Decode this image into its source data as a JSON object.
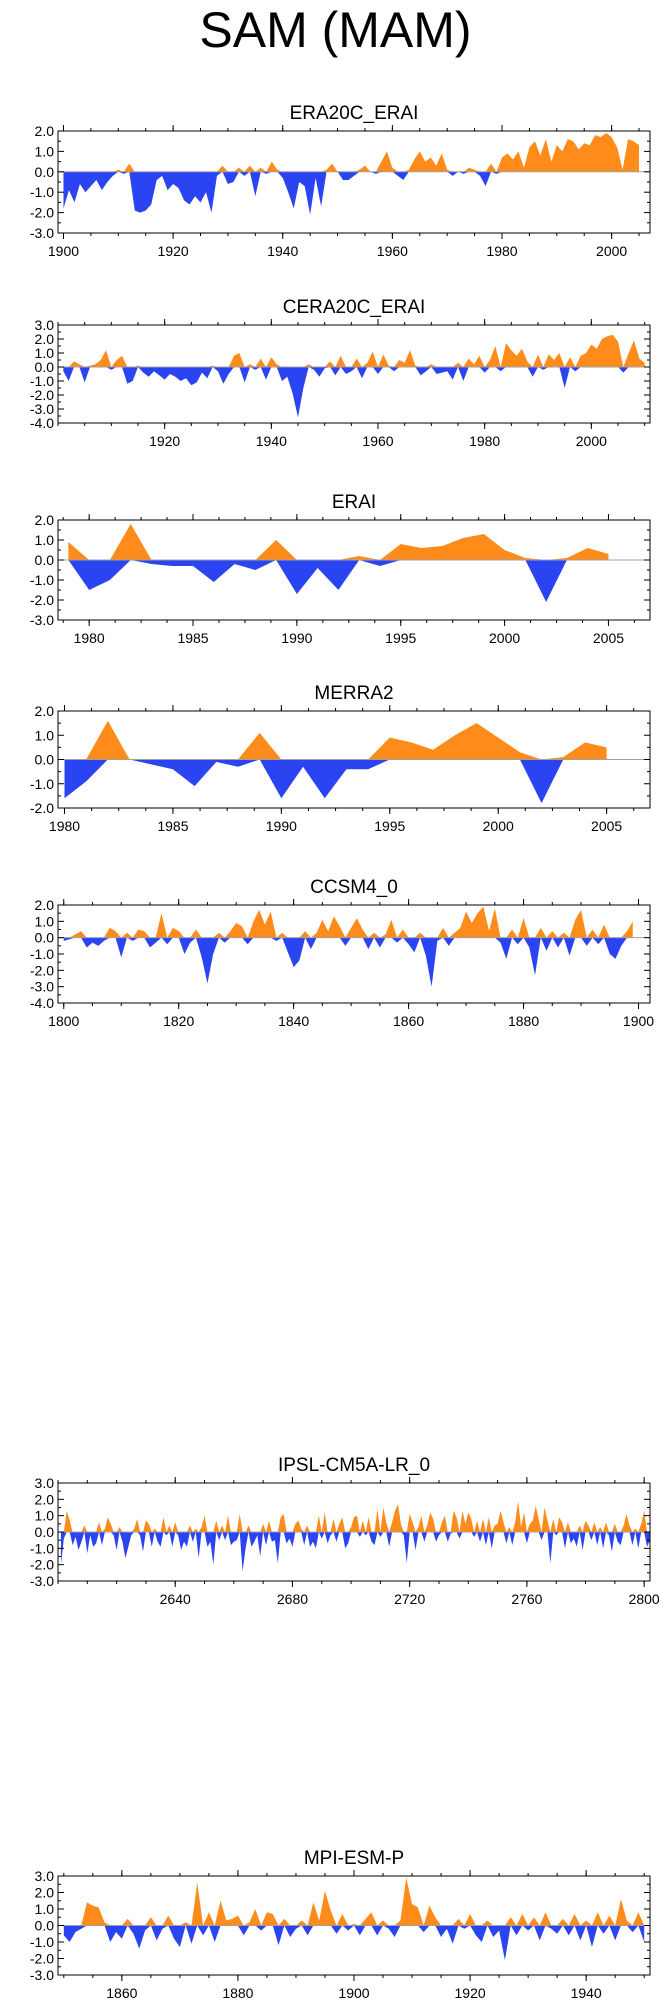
{
  "title": "SAM (MAM)",
  "colors": {
    "positive": "#ff8c1a",
    "negative": "#2b44f2",
    "zero_line": "#a0a0a0",
    "frame": "#000000"
  },
  "chart_data": [
    {
      "type": "area",
      "title": "ERA20C_ERAI",
      "xlim": [
        1899,
        2007
      ],
      "ylim": [
        -3.0,
        2.0
      ],
      "yticks": [
        "2.0",
        "1.0",
        "0.0",
        "-1.0",
        "-2.0",
        "-3.0"
      ],
      "xticks": [
        "1900",
        "1920",
        "1940",
        "1960",
        "1980",
        "2000"
      ],
      "x": [
        1900,
        1901,
        1902,
        1903,
        1904,
        1905,
        1906,
        1907,
        1908,
        1909,
        1910,
        1911,
        1912,
        1913,
        1914,
        1915,
        1916,
        1917,
        1918,
        1919,
        1920,
        1921,
        1922,
        1923,
        1924,
        1925,
        1926,
        1927,
        1928,
        1929,
        1930,
        1931,
        1932,
        1933,
        1934,
        1935,
        1936,
        1937,
        1938,
        1939,
        1940,
        1941,
        1942,
        1943,
        1944,
        1945,
        1946,
        1947,
        1948,
        1949,
        1950,
        1951,
        1952,
        1953,
        1954,
        1955,
        1956,
        1957,
        1958,
        1959,
        1960,
        1961,
        1962,
        1963,
        1964,
        1965,
        1966,
        1967,
        1968,
        1969,
        1970,
        1971,
        1972,
        1973,
        1974,
        1975,
        1976,
        1977,
        1978,
        1979,
        1980,
        1981,
        1982,
        1983,
        1984,
        1985,
        1986,
        1987,
        1988,
        1989,
        1990,
        1991,
        1992,
        1993,
        1994,
        1995,
        1996,
        1997,
        1998,
        1999,
        2000,
        2001,
        2002,
        2003,
        2004,
        2005
      ],
      "values": [
        -1.8,
        -0.9,
        -1.5,
        -0.6,
        -1.0,
        -0.7,
        -0.4,
        -0.9,
        -0.5,
        -0.2,
        0.1,
        -0.1,
        0.4,
        -1.9,
        -2.0,
        -1.9,
        -1.6,
        -0.4,
        -0.2,
        -0.9,
        -0.6,
        -0.8,
        -1.4,
        -1.6,
        -1.2,
        -1.5,
        -1.0,
        -2.0,
        -0.2,
        0.3,
        -0.6,
        -0.5,
        0.2,
        -0.2,
        0.3,
        -1.2,
        0.2,
        -0.1,
        0.5,
        0.1,
        -0.3,
        -1.0,
        -1.8,
        -0.5,
        -0.7,
        -2.1,
        -0.3,
        -1.7,
        0.1,
        0.4,
        0.0,
        -0.4,
        -0.4,
        -0.2,
        0.1,
        0.3,
        0.0,
        -0.1,
        0.5,
        1.0,
        0.2,
        -0.2,
        -0.4,
        0.1,
        0.6,
        1.0,
        0.5,
        0.7,
        0.3,
        0.9,
        0.1,
        -0.2,
        0.0,
        -0.1,
        0.2,
        0.1,
        -0.2,
        -0.7,
        0.4,
        -0.1,
        0.7,
        0.9,
        0.6,
        1.0,
        0.2,
        1.2,
        1.5,
        0.8,
        1.6,
        0.5,
        1.3,
        1.0,
        1.6,
        1.5,
        1.1,
        1.4,
        1.3,
        1.8,
        1.7,
        1.9,
        1.7,
        1.2,
        0.1,
        1.6,
        1.5,
        1.3
      ]
    },
    {
      "type": "area",
      "title": "CERA20C_ERAI",
      "xlim": [
        1900,
        2011
      ],
      "ylim": [
        -4.0,
        3.0
      ],
      "yticks": [
        "3.0",
        "2.0",
        "1.0",
        "0.0",
        "-1.0",
        "-2.0",
        "-3.0",
        "-4.0"
      ],
      "xticks": [
        "1920",
        "1940",
        "1960",
        "1980",
        "2000"
      ],
      "x": [
        1901,
        1902,
        1903,
        1904,
        1905,
        1906,
        1907,
        1908,
        1909,
        1910,
        1911,
        1912,
        1913,
        1914,
        1915,
        1916,
        1917,
        1918,
        1919,
        1920,
        1921,
        1922,
        1923,
        1924,
        1925,
        1926,
        1927,
        1928,
        1929,
        1930,
        1931,
        1932,
        1933,
        1934,
        1935,
        1936,
        1937,
        1938,
        1939,
        1940,
        1941,
        1942,
        1943,
        1944,
        1945,
        1946,
        1947,
        1948,
        1949,
        1950,
        1951,
        1952,
        1953,
        1954,
        1955,
        1956,
        1957,
        1958,
        1959,
        1960,
        1961,
        1962,
        1963,
        1964,
        1965,
        1966,
        1967,
        1968,
        1969,
        1970,
        1971,
        1972,
        1973,
        1974,
        1975,
        1976,
        1977,
        1978,
        1979,
        1980,
        1981,
        1982,
        1983,
        1984,
        1985,
        1986,
        1987,
        1988,
        1989,
        1990,
        1991,
        1992,
        1993,
        1994,
        1995,
        1996,
        1997,
        1998,
        1999,
        2000,
        2001,
        2002,
        2003,
        2004,
        2005,
        2006,
        2007,
        2008,
        2009,
        2010
      ],
      "values": [
        -0.3,
        -1.0,
        0.4,
        0.2,
        -1.1,
        0.1,
        0.2,
        0.5,
        1.2,
        -0.2,
        0.5,
        0.8,
        -1.2,
        -1.0,
        0.1,
        -0.4,
        -0.7,
        -0.3,
        -0.6,
        -0.9,
        -0.5,
        -0.7,
        -1.0,
        -0.8,
        -1.3,
        -1.1,
        -0.4,
        -0.8,
        0.1,
        -0.3,
        -1.2,
        -0.5,
        0.8,
        1.0,
        -1.1,
        0.2,
        -0.2,
        0.6,
        -0.9,
        0.7,
        0.2,
        -1.0,
        -0.7,
        -1.9,
        -3.6,
        -1.5,
        0.2,
        -0.2,
        -0.7,
        -0.1,
        0.4,
        -0.6,
        0.8,
        -0.5,
        -0.3,
        0.6,
        -0.8,
        0.3,
        1.1,
        -0.5,
        0.9,
        0.1,
        -0.3,
        0.5,
        0.3,
        1.2,
        0.1,
        -0.6,
        -0.3,
        0.2,
        -0.5,
        -0.4,
        -0.3,
        -0.9,
        0.3,
        -1.0,
        0.6,
        0.2,
        0.8,
        -0.4,
        0.5,
        1.5,
        -0.3,
        1.7,
        1.2,
        0.8,
        1.3,
        0.4,
        -0.7,
        0.9,
        -0.2,
        0.9,
        0.5,
        1.0,
        -1.5,
        0.7,
        -0.3,
        0.8,
        1.0,
        1.6,
        1.3,
        2.0,
        2.2,
        2.3,
        1.8,
        -0.4,
        1.0,
        1.9,
        0.6,
        0.3
      ]
    },
    {
      "type": "area",
      "title": "ERAI",
      "xlim": [
        1978.5,
        2007
      ],
      "ylim": [
        -3.0,
        2.0
      ],
      "yticks": [
        "2.0",
        "1.0",
        "0.0",
        "-1.0",
        "-2.0",
        "-3.0"
      ],
      "xticks": [
        "1980",
        "1985",
        "1990",
        "1995",
        "2000",
        "2005"
      ],
      "x": [
        1979,
        1980,
        1981,
        1982,
        1983,
        1984,
        1985,
        1986,
        1987,
        1988,
        1989,
        1990,
        1991,
        1992,
        1993,
        1994,
        1995,
        1996,
        1997,
        1998,
        1999,
        2000,
        2001,
        2002,
        2003,
        2004,
        2005
      ],
      "values": [
        0.9,
        -1.5,
        -1.0,
        1.8,
        -0.2,
        -0.3,
        -0.3,
        -1.1,
        -0.2,
        -0.5,
        1.0,
        -1.7,
        -0.4,
        -1.5,
        0.2,
        -0.3,
        0.8,
        0.6,
        0.7,
        1.1,
        1.3,
        0.5,
        0.1,
        -2.1,
        0.1,
        0.6,
        0.3
      ]
    },
    {
      "type": "area",
      "title": "MERRA2",
      "xlim": [
        1979.7,
        2007
      ],
      "ylim": [
        -2.0,
        2.0
      ],
      "yticks": [
        "2.0",
        "1.0",
        "0.0",
        "-1.0",
        "-2.0"
      ],
      "xticks": [
        "1980",
        "1985",
        "1990",
        "1995",
        "2000",
        "2005"
      ],
      "x": [
        1980,
        1981,
        1982,
        1983,
        1984,
        1985,
        1986,
        1987,
        1988,
        1989,
        1990,
        1991,
        1992,
        1993,
        1994,
        1995,
        1996,
        1997,
        1998,
        1999,
        2000,
        2001,
        2002,
        2003,
        2004,
        2005
      ],
      "values": [
        -1.6,
        -0.9,
        1.6,
        0.0,
        -0.2,
        -0.4,
        -1.1,
        -0.1,
        -0.3,
        1.1,
        -1.6,
        -0.3,
        -1.6,
        -0.4,
        -0.4,
        0.9,
        0.7,
        0.4,
        1.0,
        1.5,
        0.9,
        0.3,
        -1.8,
        0.1,
        0.7,
        0.5
      ]
    },
    {
      "type": "area",
      "title": "CCSM4_0",
      "xlim": [
        1799,
        1902
      ],
      "ylim": [
        -4.0,
        2.0
      ],
      "yticks": [
        "2.0",
        "1.0",
        "0.0",
        "-1.0",
        "-2.0",
        "-3.0",
        "-4.0"
      ],
      "xticks": [
        "1800",
        "1820",
        "1840",
        "1860",
        "1880",
        "1900"
      ],
      "x": [
        1800,
        1801,
        1802,
        1803,
        1804,
        1805,
        1806,
        1807,
        1808,
        1809,
        1810,
        1811,
        1812,
        1813,
        1814,
        1815,
        1816,
        1817,
        1818,
        1819,
        1820,
        1821,
        1822,
        1823,
        1824,
        1825,
        1826,
        1827,
        1828,
        1829,
        1830,
        1831,
        1832,
        1833,
        1834,
        1835,
        1836,
        1837,
        1838,
        1839,
        1840,
        1841,
        1842,
        1843,
        1844,
        1845,
        1846,
        1847,
        1848,
        1849,
        1850,
        1851,
        1852,
        1853,
        1854,
        1855,
        1856,
        1857,
        1858,
        1859,
        1860,
        1861,
        1862,
        1863,
        1864,
        1865,
        1866,
        1867,
        1868,
        1869,
        1870,
        1871,
        1872,
        1873,
        1874,
        1875,
        1876,
        1877,
        1878,
        1879,
        1880,
        1881,
        1882,
        1883,
        1884,
        1885,
        1886,
        1887,
        1888,
        1889,
        1890,
        1891,
        1892,
        1893,
        1894,
        1895,
        1896,
        1897,
        1898,
        1899
      ],
      "values": [
        -0.2,
        -0.1,
        0.2,
        0.4,
        -0.6,
        -0.3,
        -0.5,
        -0.2,
        0.6,
        0.4,
        -1.2,
        0.3,
        -0.2,
        0.5,
        0.4,
        -0.6,
        -0.3,
        1.5,
        -0.4,
        0.6,
        0.4,
        -1.0,
        -0.3,
        0.5,
        -1.2,
        -2.8,
        -1.0,
        0.3,
        -0.3,
        0.4,
        0.9,
        0.7,
        -0.4,
        1.0,
        1.7,
        0.8,
        1.6,
        -0.2,
        0.3,
        -0.9,
        -1.8,
        -1.4,
        0.4,
        -0.7,
        0.3,
        1.1,
        0.4,
        1.3,
        0.7,
        -0.5,
        0.6,
        1.2,
        0.5,
        -0.7,
        0.3,
        -0.6,
        0.2,
        1.1,
        -0.3,
        0.5,
        -0.4,
        -0.9,
        0.3,
        -1.1,
        -3.0,
        -0.2,
        0.6,
        -0.5,
        0.3,
        0.6,
        1.6,
        0.9,
        1.5,
        1.9,
        0.4,
        1.8,
        -0.3,
        -1.3,
        0.5,
        -0.4,
        1.2,
        -0.6,
        -2.3,
        0.6,
        -0.8,
        0.4,
        -0.6,
        0.3,
        -1.1,
        1.1,
        1.7,
        -0.5,
        0.5,
        -0.4,
        0.8,
        -1.0,
        -1.3,
        -0.5,
        0.4,
        1.0
      ]
    },
    {
      "type": "area",
      "title": "IPSL-CM5A-LR_0",
      "xlim": [
        2600,
        2802
      ],
      "ylim": [
        -3.0,
        3.0
      ],
      "yticks": [
        "3.0",
        "2.0",
        "1.0",
        "0.0",
        "-1.0",
        "-2.0",
        "-3.0"
      ],
      "xticks": [
        "2640",
        "2680",
        "2720",
        "2760",
        "2800"
      ],
      "x_start": 2601,
      "x_step": 1,
      "values": [
        -2.0,
        -0.4,
        1.3,
        0.7,
        -0.8,
        -0.3,
        -1.1,
        -0.6,
        0.4,
        -1.3,
        -0.2,
        -0.9,
        -0.7,
        0.6,
        -0.8,
        0.2,
        0.9,
        0.5,
        -0.2,
        -1.1,
        0.3,
        -0.6,
        -1.6,
        -0.9,
        -0.2,
        0.2,
        0.8,
        -0.2,
        -1.2,
        0.7,
        0.5,
        -0.9,
        0.2,
        -0.6,
        -0.9,
        0.9,
        -0.2,
        0.4,
        -0.9,
        0.6,
        -0.2,
        -1.1,
        -0.6,
        -0.9,
        0.4,
        -0.6,
        0.2,
        -1.6,
        0.3,
        1.0,
        -0.9,
        -0.6,
        -2.0,
        0.7,
        -0.5,
        0.4,
        -0.5,
        1.0,
        -0.8,
        -0.6,
        -0.5,
        1.1,
        -2.4,
        -1.0,
        0.4,
        -0.9,
        -0.6,
        -0.2,
        -1.5,
        0.5,
        -0.8,
        0.7,
        -0.6,
        -0.5,
        -1.9,
        0.9,
        1.1,
        -0.7,
        -0.4,
        -0.9,
        0.5,
        0.7,
        0.2,
        -0.8,
        0.4,
        -0.9,
        -0.6,
        -1.0,
        1.0,
        -0.4,
        1.2,
        -0.7,
        -0.2,
        0.8,
        -0.6,
        0.5,
        0.9,
        -1.0,
        -0.7,
        0.3,
        0.9,
        1.0,
        -0.3,
        0.7,
        -0.2,
        0.9,
        -0.6,
        -0.8,
        1.4,
        -0.3,
        1.5,
        0.6,
        -0.9,
        0.6,
        1.3,
        1.7,
        0.5,
        -0.2,
        -1.9,
        1.1,
        0.6,
        -1.1,
        0.3,
        1.0,
        -0.6,
        0.4,
        1.2,
        0.8,
        -0.6,
        -0.2,
        0.6,
        1.0,
        -0.6,
        -0.1,
        1.3,
        0.9,
        -0.4,
        1.3,
        0.5,
        1.2,
        0.8,
        -0.3,
        0.7,
        -0.6,
        0.8,
        -0.8,
        0.9,
        -1.0,
        0.4,
        0.5,
        1.3,
        0.6,
        -0.7,
        0.3,
        -0.8,
        0.6,
        1.9,
        0.3,
        1.2,
        -0.7,
        0.5,
        0.7,
        1.6,
        0.8,
        -0.5,
        1.5,
        0.7,
        -1.9,
        0.8,
        -0.2,
        0.9,
        0.6,
        -1.0,
        0.6,
        -0.7,
        -0.4,
        -0.9,
        0.4,
        -1.1,
        0.7,
        0.4,
        -0.5,
        0.6,
        -0.8,
        0.3,
        -1.0,
        0.6,
        -0.2,
        -1.2,
        0.5,
        -0.6,
        -0.8,
        0.4,
        1.1,
        0.4,
        -0.8,
        0.2,
        -1.0,
        0.5,
        1.3,
        -0.9,
        -0.5
      ]
    },
    {
      "type": "area",
      "title": "MPI-ESM-P",
      "xlim": [
        1849,
        1951
      ],
      "ylim": [
        -3.0,
        3.0
      ],
      "yticks": [
        "3.0",
        "2.0",
        "1.0",
        "0.0",
        "-1.0",
        "-2.0",
        "-3.0"
      ],
      "xticks": [
        "1860",
        "1880",
        "1900",
        "1920",
        "1940"
      ],
      "x": [
        1850,
        1851,
        1852,
        1853,
        1854,
        1855,
        1856,
        1857,
        1858,
        1859,
        1860,
        1861,
        1862,
        1863,
        1864,
        1865,
        1866,
        1867,
        1868,
        1869,
        1870,
        1871,
        1872,
        1873,
        1874,
        1875,
        1876,
        1877,
        1878,
        1879,
        1880,
        1881,
        1882,
        1883,
        1884,
        1885,
        1886,
        1887,
        1888,
        1889,
        1890,
        1891,
        1892,
        1893,
        1894,
        1895,
        1896,
        1897,
        1898,
        1899,
        1900,
        1901,
        1902,
        1903,
        1904,
        1905,
        1906,
        1907,
        1908,
        1909,
        1910,
        1911,
        1912,
        1913,
        1914,
        1915,
        1916,
        1917,
        1918,
        1919,
        1920,
        1921,
        1922,
        1923,
        1924,
        1925,
        1926,
        1927,
        1928,
        1929,
        1930,
        1931,
        1932,
        1933,
        1934,
        1935,
        1936,
        1937,
        1938,
        1939,
        1940,
        1941,
        1942,
        1943,
        1944,
        1945,
        1946,
        1947,
        1948,
        1949,
        1950
      ],
      "values": [
        -0.6,
        -1.0,
        -0.4,
        -0.2,
        1.4,
        1.2,
        1.1,
        0.2,
        -1.0,
        -0.4,
        -0.8,
        0.4,
        -0.5,
        -1.4,
        -0.3,
        0.5,
        -0.9,
        -0.2,
        0.6,
        -0.8,
        -1.3,
        0.2,
        -1.1,
        2.6,
        -0.6,
        0.8,
        -1.0,
        1.5,
        0.3,
        0.4,
        0.6,
        -0.6,
        0.2,
        1.0,
        -0.3,
        0.8,
        0.7,
        -1.2,
        0.4,
        -0.7,
        -0.2,
        0.3,
        -0.6,
        1.4,
        0.3,
        2.1,
        0.9,
        -0.5,
        0.7,
        -0.3,
        0.1,
        -0.6,
        0.4,
        0.8,
        -0.6,
        0.3,
        -0.2,
        -0.7,
        0.3,
        2.9,
        1.3,
        1.1,
        -0.4,
        1.2,
        0.5,
        -0.7,
        -0.2,
        -1.1,
        0.4,
        -0.2,
        0.7,
        -0.6,
        -1.0,
        0.3,
        -0.7,
        -0.3,
        -2.1,
        0.5,
        -0.6,
        0.7,
        -0.3,
        0.5,
        -0.9,
        0.8,
        -0.2,
        -0.5,
        0.4,
        -0.6,
        0.7,
        -0.9,
        0.3,
        -1.3,
        0.8,
        -0.5,
        0.6,
        -0.9,
        1.6,
        0.3,
        -0.4,
        0.8,
        -1.0
      ]
    }
  ]
}
